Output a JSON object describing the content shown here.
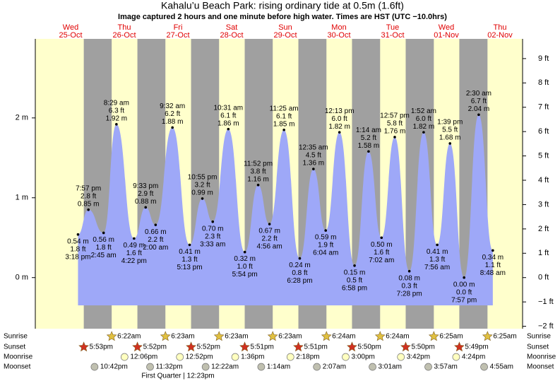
{
  "chart_data": {
    "type": "tide",
    "title": "Kahalu’u Beach Park: rising  ordinary tide at 0.5m (1.6ft)",
    "subtitle": "Image captured 2 hours and one minute before high water. Times are HST (UTC −10.0hrs)",
    "ylim": [
      -0.64,
      2.99
    ],
    "yticks": [
      {
        "value": 0,
        "label": "0 m"
      },
      {
        "value": 1,
        "label": "1 m"
      },
      {
        "value": 2,
        "label": "2 m"
      }
    ],
    "y2lim": [
      -2.1,
      9.81
    ],
    "y2ticks": [
      {
        "value": -2,
        "label": "−2 ft"
      },
      {
        "value": -1,
        "label": "−1 ft"
      },
      {
        "value": 0,
        "label": "0 ft"
      },
      {
        "value": 1,
        "label": "1 ft"
      },
      {
        "value": 2,
        "label": "2 ft"
      },
      {
        "value": 3,
        "label": "3 ft"
      },
      {
        "value": 4,
        "label": "4 ft"
      },
      {
        "value": 5,
        "label": "5 ft"
      },
      {
        "value": 6,
        "label": "6 ft"
      },
      {
        "value": 7,
        "label": "7 ft"
      },
      {
        "value": 8,
        "label": "8 ft"
      },
      {
        "value": 9,
        "label": "9 ft"
      }
    ],
    "colors": {
      "day": "#ffffcc",
      "night": "#a0a0a0",
      "water": "#9ea8f8",
      "day_label": "#e00000"
    },
    "row_labels": {
      "sunrise": "Sunrise",
      "sunset": "Sunset",
      "moonrise": "Moonrise",
      "moonset": "Moonset"
    },
    "moon_phase": "First Quarter | 12:23pm",
    "days": [
      {
        "weekday": "Wed",
        "date": "25-Oct",
        "sunset": "5:53pm",
        "moonset": "10:42pm",
        "tides": [
          {
            "time": "3:18 pm",
            "value": 0.54,
            "value_label": "0.54 m",
            "feet": "1.8 ft"
          },
          {
            "time": "7:57 pm",
            "value": 0.85,
            "value_label": "0.85 m",
            "feet": "2.8 ft"
          }
        ]
      },
      {
        "weekday": "Thu",
        "date": "26-Oct",
        "sunrise": "6:22am",
        "sunset": "5:52pm",
        "moonrise": "12:06pm",
        "moonset": "11:32pm",
        "tides": [
          {
            "time": "2:45 am",
            "value": 0.56,
            "value_label": "0.56 m",
            "feet": "1.8 ft"
          },
          {
            "time": "8:29 am",
            "value": 1.92,
            "value_label": "1.92 m",
            "feet": "6.3 ft"
          },
          {
            "time": "4:22 pm",
            "value": 0.49,
            "value_label": "0.49 m",
            "feet": "1.6 ft"
          },
          {
            "time": "9:33 pm",
            "value": 0.88,
            "value_label": "0.88 m",
            "feet": "2.9 ft"
          }
        ]
      },
      {
        "weekday": "Fri",
        "date": "27-Oct",
        "sunrise": "6:23am",
        "sunset": "5:52pm",
        "moonrise": "12:52pm",
        "tides": [
          {
            "time": "2:00 am",
            "value": 0.66,
            "value_label": "0.66 m",
            "feet": "2.2 ft"
          },
          {
            "time": "9:32 am",
            "value": 1.88,
            "value_label": "1.88 m",
            "feet": "6.2 ft"
          },
          {
            "time": "5:13 pm",
            "value": 0.41,
            "value_label": "0.41 m",
            "feet": "1.3 ft"
          },
          {
            "time": "10:55 pm",
            "value": 0.99,
            "value_label": "0.99 m",
            "feet": "3.2 ft"
          }
        ]
      },
      {
        "weekday": "Sat",
        "date": "28-Oct",
        "sunrise": "6:23am",
        "sunset": "5:51pm",
        "moonrise": "1:36pm",
        "moonset": "12:22am",
        "tides": [
          {
            "time": "3:33 am",
            "value": 0.7,
            "value_label": "0.70 m",
            "feet": "2.3 ft"
          },
          {
            "time": "10:31 am",
            "value": 1.86,
            "value_label": "1.86 m",
            "feet": "6.1 ft"
          },
          {
            "time": "5:54 pm",
            "value": 0.32,
            "value_label": "0.32 m",
            "feet": "1.0 ft"
          },
          {
            "time": "11:52 pm",
            "value": 1.16,
            "value_label": "1.16 m",
            "feet": "3.8 ft"
          }
        ]
      },
      {
        "weekday": "Sun",
        "date": "29-Oct",
        "sunrise": "6:23am",
        "sunset": "5:51pm",
        "moonrise": "2:18pm",
        "moonset": "1:14am",
        "tides": [
          {
            "time": "4:56 am",
            "value": 0.67,
            "value_label": "0.67 m",
            "feet": "2.2 ft"
          },
          {
            "time": "11:25 am",
            "value": 1.85,
            "value_label": "1.85 m",
            "feet": "6.1 ft"
          },
          {
            "time": "6:28 pm",
            "value": 0.24,
            "value_label": "0.24 m",
            "feet": "0.8 ft"
          }
        ]
      },
      {
        "weekday": "Mon",
        "date": "30-Oct",
        "sunrise": "6:24am",
        "sunset": "5:50pm",
        "moonrise": "3:00pm",
        "moonset": "2:07am",
        "tides": [
          {
            "time": "12:35 am",
            "value": 1.36,
            "value_label": "1.36 m",
            "feet": "4.5 ft"
          },
          {
            "time": "6:04 am",
            "value": 0.59,
            "value_label": "0.59 m",
            "feet": "1.9 ft"
          },
          {
            "time": "12:13 pm",
            "value": 1.82,
            "value_label": "1.82 m",
            "feet": "6.0 ft"
          },
          {
            "time": "6:58 pm",
            "value": 0.15,
            "value_label": "0.15 m",
            "feet": "0.5 ft"
          }
        ]
      },
      {
        "weekday": "Tue",
        "date": "31-Oct",
        "sunrise": "6:24am",
        "sunset": "5:50pm",
        "moonrise": "3:42pm",
        "moonset": "3:01am",
        "tides": [
          {
            "time": "1:14 am",
            "value": 1.58,
            "value_label": "1.58 m",
            "feet": "5.2 ft"
          },
          {
            "time": "7:02 am",
            "value": 0.5,
            "value_label": "0.50 m",
            "feet": "1.6 ft"
          },
          {
            "time": "12:57 pm",
            "value": 1.76,
            "value_label": "1.76 m",
            "feet": "5.8 ft"
          },
          {
            "time": "7:28 pm",
            "value": 0.08,
            "value_label": "0.08 m",
            "feet": "0.3 ft"
          }
        ]
      },
      {
        "weekday": "Wed",
        "date": "01-Nov",
        "sunrise": "6:25am",
        "sunset": "5:49pm",
        "moonrise": "4:24pm",
        "moonset": "3:57am",
        "tides": [
          {
            "time": "1:52 am",
            "value": 1.82,
            "value_label": "1.82 m",
            "feet": "6.0 ft"
          },
          {
            "time": "7:56 am",
            "value": 0.41,
            "value_label": "0.41 m",
            "feet": "1.3 ft"
          },
          {
            "time": "1:39 pm",
            "value": 1.68,
            "value_label": "1.68 m",
            "feet": "5.5 ft"
          },
          {
            "time": "7:57 pm",
            "value": 0.0,
            "value_label": "0.00 m",
            "feet": "0.0 ft"
          }
        ]
      },
      {
        "weekday": "Thu",
        "date": "02-Nov",
        "sunrise": "6:25am",
        "moonset": "4:55am",
        "tides": [
          {
            "time": "2:30 am",
            "value": 2.04,
            "value_label": "2.04 m",
            "feet": "6.7 ft"
          },
          {
            "time": "8:48 am",
            "value": 0.34,
            "value_label": "0.34 m",
            "feet": "1.1 ft"
          }
        ]
      }
    ]
  }
}
